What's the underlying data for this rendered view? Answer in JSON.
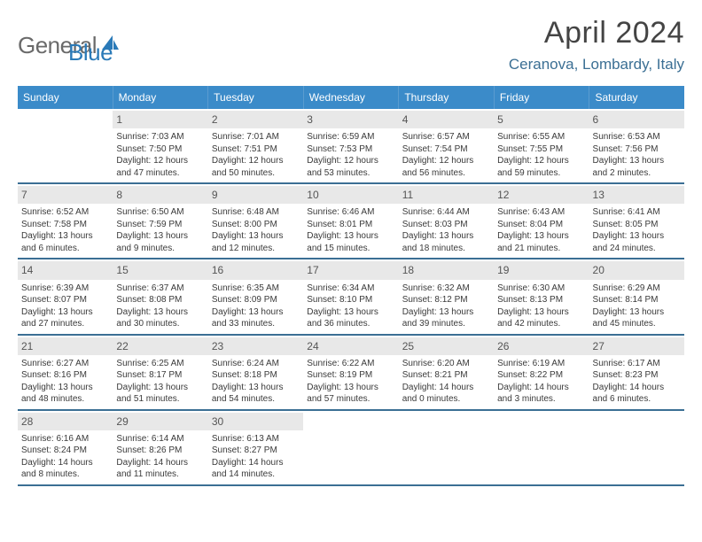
{
  "logo": {
    "text1": "General",
    "text2": "Blue"
  },
  "title": "April 2024",
  "location": "Ceranova, Lombardy, Italy",
  "colors": {
    "header_bg": "#3b8bc9",
    "header_text": "#ffffff",
    "accent": "#2a7ab8",
    "location_color": "#3b6f94",
    "daynum_bg": "#e8e8e8",
    "rule": "#3b6f94",
    "text": "#3a3a3a"
  },
  "dayNames": [
    "Sunday",
    "Monday",
    "Tuesday",
    "Wednesday",
    "Thursday",
    "Friday",
    "Saturday"
  ],
  "weeks": [
    [
      {
        "empty": true
      },
      {
        "n": "1",
        "sr": "Sunrise: 7:03 AM",
        "ss": "Sunset: 7:50 PM",
        "dl": "Daylight: 12 hours and 47 minutes."
      },
      {
        "n": "2",
        "sr": "Sunrise: 7:01 AM",
        "ss": "Sunset: 7:51 PM",
        "dl": "Daylight: 12 hours and 50 minutes."
      },
      {
        "n": "3",
        "sr": "Sunrise: 6:59 AM",
        "ss": "Sunset: 7:53 PM",
        "dl": "Daylight: 12 hours and 53 minutes."
      },
      {
        "n": "4",
        "sr": "Sunrise: 6:57 AM",
        "ss": "Sunset: 7:54 PM",
        "dl": "Daylight: 12 hours and 56 minutes."
      },
      {
        "n": "5",
        "sr": "Sunrise: 6:55 AM",
        "ss": "Sunset: 7:55 PM",
        "dl": "Daylight: 12 hours and 59 minutes."
      },
      {
        "n": "6",
        "sr": "Sunrise: 6:53 AM",
        "ss": "Sunset: 7:56 PM",
        "dl": "Daylight: 13 hours and 2 minutes."
      }
    ],
    [
      {
        "n": "7",
        "sr": "Sunrise: 6:52 AM",
        "ss": "Sunset: 7:58 PM",
        "dl": "Daylight: 13 hours and 6 minutes."
      },
      {
        "n": "8",
        "sr": "Sunrise: 6:50 AM",
        "ss": "Sunset: 7:59 PM",
        "dl": "Daylight: 13 hours and 9 minutes."
      },
      {
        "n": "9",
        "sr": "Sunrise: 6:48 AM",
        "ss": "Sunset: 8:00 PM",
        "dl": "Daylight: 13 hours and 12 minutes."
      },
      {
        "n": "10",
        "sr": "Sunrise: 6:46 AM",
        "ss": "Sunset: 8:01 PM",
        "dl": "Daylight: 13 hours and 15 minutes."
      },
      {
        "n": "11",
        "sr": "Sunrise: 6:44 AM",
        "ss": "Sunset: 8:03 PM",
        "dl": "Daylight: 13 hours and 18 minutes."
      },
      {
        "n": "12",
        "sr": "Sunrise: 6:43 AM",
        "ss": "Sunset: 8:04 PM",
        "dl": "Daylight: 13 hours and 21 minutes."
      },
      {
        "n": "13",
        "sr": "Sunrise: 6:41 AM",
        "ss": "Sunset: 8:05 PM",
        "dl": "Daylight: 13 hours and 24 minutes."
      }
    ],
    [
      {
        "n": "14",
        "sr": "Sunrise: 6:39 AM",
        "ss": "Sunset: 8:07 PM",
        "dl": "Daylight: 13 hours and 27 minutes."
      },
      {
        "n": "15",
        "sr": "Sunrise: 6:37 AM",
        "ss": "Sunset: 8:08 PM",
        "dl": "Daylight: 13 hours and 30 minutes."
      },
      {
        "n": "16",
        "sr": "Sunrise: 6:35 AM",
        "ss": "Sunset: 8:09 PM",
        "dl": "Daylight: 13 hours and 33 minutes."
      },
      {
        "n": "17",
        "sr": "Sunrise: 6:34 AM",
        "ss": "Sunset: 8:10 PM",
        "dl": "Daylight: 13 hours and 36 minutes."
      },
      {
        "n": "18",
        "sr": "Sunrise: 6:32 AM",
        "ss": "Sunset: 8:12 PM",
        "dl": "Daylight: 13 hours and 39 minutes."
      },
      {
        "n": "19",
        "sr": "Sunrise: 6:30 AM",
        "ss": "Sunset: 8:13 PM",
        "dl": "Daylight: 13 hours and 42 minutes."
      },
      {
        "n": "20",
        "sr": "Sunrise: 6:29 AM",
        "ss": "Sunset: 8:14 PM",
        "dl": "Daylight: 13 hours and 45 minutes."
      }
    ],
    [
      {
        "n": "21",
        "sr": "Sunrise: 6:27 AM",
        "ss": "Sunset: 8:16 PM",
        "dl": "Daylight: 13 hours and 48 minutes."
      },
      {
        "n": "22",
        "sr": "Sunrise: 6:25 AM",
        "ss": "Sunset: 8:17 PM",
        "dl": "Daylight: 13 hours and 51 minutes."
      },
      {
        "n": "23",
        "sr": "Sunrise: 6:24 AM",
        "ss": "Sunset: 8:18 PM",
        "dl": "Daylight: 13 hours and 54 minutes."
      },
      {
        "n": "24",
        "sr": "Sunrise: 6:22 AM",
        "ss": "Sunset: 8:19 PM",
        "dl": "Daylight: 13 hours and 57 minutes."
      },
      {
        "n": "25",
        "sr": "Sunrise: 6:20 AM",
        "ss": "Sunset: 8:21 PM",
        "dl": "Daylight: 14 hours and 0 minutes."
      },
      {
        "n": "26",
        "sr": "Sunrise: 6:19 AM",
        "ss": "Sunset: 8:22 PM",
        "dl": "Daylight: 14 hours and 3 minutes."
      },
      {
        "n": "27",
        "sr": "Sunrise: 6:17 AM",
        "ss": "Sunset: 8:23 PM",
        "dl": "Daylight: 14 hours and 6 minutes."
      }
    ],
    [
      {
        "n": "28",
        "sr": "Sunrise: 6:16 AM",
        "ss": "Sunset: 8:24 PM",
        "dl": "Daylight: 14 hours and 8 minutes."
      },
      {
        "n": "29",
        "sr": "Sunrise: 6:14 AM",
        "ss": "Sunset: 8:26 PM",
        "dl": "Daylight: 14 hours and 11 minutes."
      },
      {
        "n": "30",
        "sr": "Sunrise: 6:13 AM",
        "ss": "Sunset: 8:27 PM",
        "dl": "Daylight: 14 hours and 14 minutes."
      },
      {
        "empty": true
      },
      {
        "empty": true
      },
      {
        "empty": true
      },
      {
        "empty": true
      }
    ]
  ]
}
